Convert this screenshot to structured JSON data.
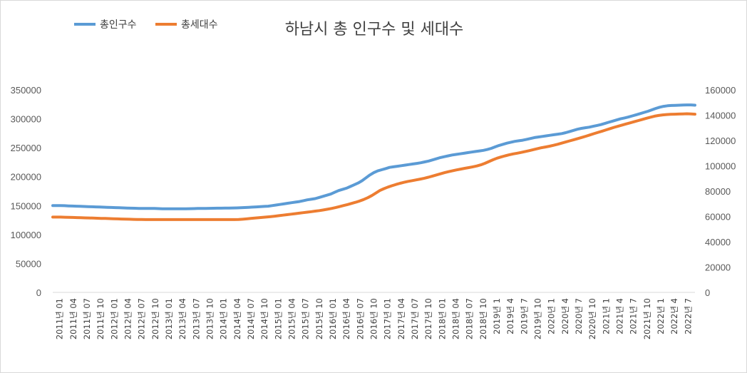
{
  "chart_data": {
    "type": "line",
    "title": "하남시 총 인구수 및 세대수",
    "legend_position": "top-left",
    "grid": false,
    "y_left": {
      "min": 0,
      "max": 350000,
      "ticks": [
        "350000",
        "300000",
        "250000",
        "200000",
        "150000",
        "100000",
        "50000",
        "0"
      ]
    },
    "y_right": {
      "min": 0,
      "max": 160000,
      "ticks": [
        "160000",
        "140000",
        "120000",
        "100000",
        "80000",
        "60000",
        "40000",
        "20000",
        "0"
      ]
    },
    "x_tick_labels": [
      "2011년 01",
      "2011년 04",
      "2011년 07",
      "2011년 10",
      "2012년 01",
      "2012년 04",
      "2012년 07",
      "2012년 10",
      "2013년 01",
      "2013년 04",
      "2013년 07",
      "2013년 10",
      "2014년 01",
      "2014년 04",
      "2014년 07",
      "2014년 10",
      "2015년 01",
      "2015년 04",
      "2015년 07",
      "2015년 10",
      "2016년 01",
      "2016년 04",
      "2016년 07",
      "2016년 10",
      "2017년 01",
      "2017년 04",
      "2017년 07",
      "2017년 10",
      "2018년 01",
      "2018년 04",
      "2018년 07",
      "2018년 10",
      "2019년 1",
      "2019년 4",
      "2019년 7",
      "2019년 10",
      "2020년 1",
      "2020년 4",
      "2020년 7",
      "2020년 10",
      "2021년 1",
      "2021년 4",
      "2021년 7",
      "2021년 10",
      "2022년 1",
      "2022년 4",
      "2022년 7"
    ],
    "series": [
      {
        "name": "총인구수",
        "axis": "left",
        "color": "#5b9bd5",
        "values": [
          150000,
          150000,
          150000,
          149800,
          149500,
          149200,
          149000,
          148800,
          148500,
          148200,
          148000,
          147800,
          147600,
          147300,
          147000,
          146800,
          146500,
          146300,
          146000,
          145800,
          145600,
          145400,
          145200,
          145100,
          145000,
          145000,
          145000,
          144800,
          144600,
          144500,
          144500,
          144500,
          144500,
          144500,
          144600,
          144700,
          144800,
          145000,
          145100,
          145200,
          145300,
          145400,
          145500,
          145600,
          145700,
          145800,
          145900,
          146000,
          146300,
          146600,
          147000,
          147400,
          147800,
          148200,
          148600,
          149000,
          150000,
          151000,
          152000,
          153000,
          154000,
          155000,
          156000,
          157000,
          158500,
          160000,
          161000,
          162000,
          164000,
          166000,
          168000,
          170000,
          173000,
          176000,
          178000,
          180000,
          183000,
          186000,
          189000,
          193000,
          198000,
          203000,
          207000,
          210000,
          212000,
          214000,
          216000,
          217000,
          218000,
          219000,
          220000,
          221000,
          222000,
          223000,
          224000,
          225500,
          227000,
          229000,
          231000,
          233000,
          234500,
          236000,
          237500,
          238500,
          239500,
          240500,
          241500,
          242500,
          243500,
          244500,
          245500,
          247000,
          249000,
          251500,
          254000,
          256000,
          258000,
          259500,
          261000,
          262000,
          263000,
          264500,
          266000,
          267500,
          268500,
          269500,
          270500,
          271500,
          272500,
          273500,
          274500,
          276000,
          278000,
          280000,
          282000,
          283500,
          284500,
          285500,
          287000,
          288500,
          290000,
          292000,
          294000,
          296000,
          298000,
          300000,
          301500,
          303000,
          305000,
          307000,
          309000,
          311000,
          313000,
          315500,
          318000,
          320000,
          321500,
          322500,
          323000,
          323300,
          323500,
          323800,
          324000,
          324000,
          323500
        ]
      },
      {
        "name": "총세대수",
        "axis": "right",
        "color": "#ed7d31",
        "values": [
          59500,
          59500,
          59500,
          59400,
          59300,
          59200,
          59100,
          59000,
          58900,
          58800,
          58700,
          58600,
          58500,
          58400,
          58300,
          58200,
          58100,
          58000,
          57900,
          57800,
          57700,
          57600,
          57550,
          57500,
          57500,
          57500,
          57500,
          57500,
          57500,
          57500,
          57500,
          57500,
          57500,
          57500,
          57500,
          57500,
          57500,
          57500,
          57500,
          57500,
          57500,
          57500,
          57500,
          57500,
          57500,
          57500,
          57600,
          57800,
          58100,
          58400,
          58700,
          59000,
          59300,
          59600,
          59900,
          60200,
          60600,
          61000,
          61400,
          61800,
          62200,
          62600,
          63000,
          63400,
          63800,
          64200,
          64600,
          65100,
          65700,
          66300,
          67000,
          67800,
          68600,
          69400,
          70300,
          71200,
          72200,
          73400,
          74800,
          76500,
          78500,
          80500,
          82000,
          83200,
          84300,
          85300,
          86200,
          87000,
          87700,
          88300,
          88900,
          89500,
          90200,
          91000,
          91900,
          92800,
          93700,
          94600,
          95400,
          96100,
          96800,
          97400,
          98000,
          98600,
          99200,
          99900,
          100800,
          102000,
          103400,
          104800,
          106000,
          107000,
          107900,
          108700,
          109400,
          110000,
          110600,
          111300,
          112000,
          112800,
          113600,
          114300,
          114900,
          115500,
          116200,
          117000,
          117900,
          118800,
          119700,
          120600,
          121500,
          122400,
          123400,
          124400,
          125400,
          126400,
          127400,
          128400,
          129400,
          130400,
          131300,
          132200,
          133100,
          134000,
          134900,
          135800,
          136700,
          137600,
          138400,
          139200,
          139800,
          140200,
          140500,
          140700,
          140800,
          140900,
          141000,
          141100,
          141000,
          140800
        ]
      }
    ]
  }
}
